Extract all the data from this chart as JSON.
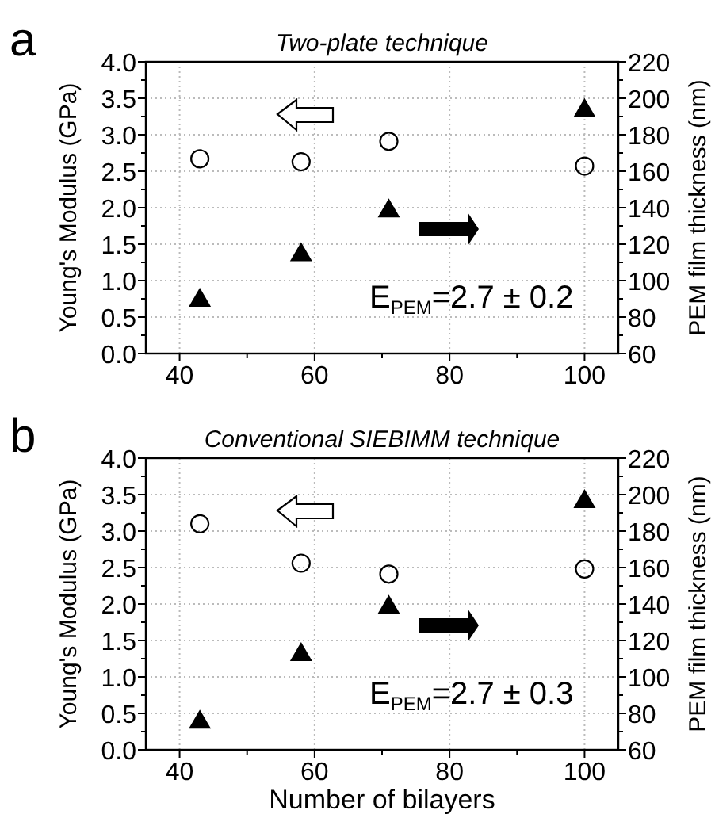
{
  "chart_data": [
    {
      "type": "scatter",
      "title": "Two-plate  technique",
      "ylabel": "Young's Modulus (GPa)",
      "y2label": "PEM film thickness (nm)",
      "x": [
        43,
        58,
        71,
        100
      ],
      "xlim": [
        35,
        105
      ],
      "xticks": [
        40,
        60,
        80,
        100
      ],
      "ylim": [
        0,
        4
      ],
      "yticks": [
        {
          "value": 0,
          "label": "0.0"
        },
        {
          "value": 0.5,
          "label": "0.5"
        },
        {
          "value": 1,
          "label": "1.0"
        },
        {
          "value": 1.5,
          "label": "1.5"
        },
        {
          "value": 2,
          "label": "2.0"
        },
        {
          "value": 2.5,
          "label": "2.5"
        },
        {
          "value": 3,
          "label": "3.0"
        },
        {
          "value": 3.5,
          "label": "3.5"
        },
        {
          "value": 4,
          "label": "4.0"
        }
      ],
      "y2lim": [
        60,
        220
      ],
      "y2ticks": [
        60,
        80,
        100,
        120,
        140,
        160,
        180,
        200,
        220
      ],
      "grid": true,
      "series": [
        {
          "color": "#000000",
          "marker": "circle",
          "values": [
            2.67,
            2.63,
            2.91,
            2.57
          ]
        },
        {
          "color": "#000000",
          "marker": "triangle",
          "axis": "y2",
          "values": [
            90,
            115,
            139,
            194
          ]
        }
      ],
      "annotations": [
        "a",
        "E$_{PEM}$=2.7 ± 0.2"
      ]
    },
    {
      "type": "scatter",
      "title": "Conventional SIEBIMM technique",
      "xlabel": "Number of bilayers",
      "ylabel": "Young's Modulus (GPa)",
      "y2label": "PEM film thickness (nm)",
      "x": [
        43,
        58,
        71,
        100
      ],
      "xlim": [
        35,
        105
      ],
      "xticks": [
        40,
        60,
        80,
        100
      ],
      "ylim": [
        0,
        4
      ],
      "yticks": [
        {
          "value": 0,
          "label": "0.0"
        },
        {
          "value": 0.5,
          "label": "0.5"
        },
        {
          "value": 1,
          "label": "1.0"
        },
        {
          "value": 1.5,
          "label": "1.5"
        },
        {
          "value": 2,
          "label": "2.0"
        },
        {
          "value": 2.5,
          "label": "2.5"
        },
        {
          "value": 3,
          "label": "3.0"
        },
        {
          "value": 3.5,
          "label": "3.5"
        },
        {
          "value": 4,
          "label": "4.0"
        }
      ],
      "y2lim": [
        60,
        220
      ],
      "y2ticks": [
        60,
        80,
        100,
        120,
        140,
        160,
        180,
        200,
        220
      ],
      "grid": true,
      "series": [
        {
          "color": "#000000",
          "marker": "circle",
          "values": [
            3.1,
            2.56,
            2.41,
            2.48
          ]
        },
        {
          "color": "#000000",
          "marker": "triangle",
          "axis": "y2",
          "values": [
            76,
            113,
            139,
            197
          ]
        }
      ],
      "annotations": [
        "b",
        "E$_{PEM}$=2.7 ± 0.3"
      ]
    }
  ]
}
